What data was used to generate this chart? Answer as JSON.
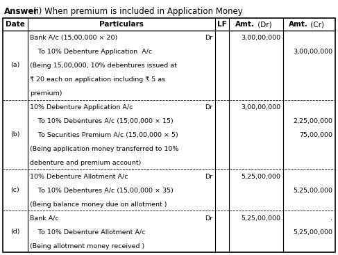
{
  "title_bold": "Answer",
  "title_normal": " (i) When premium is included in Application Money",
  "headers": [
    "Date",
    "Particulars",
    "LF",
    "Amt. (Dr)",
    "Amt. (Cr)"
  ],
  "rows": [
    {
      "date": "(a)",
      "lines": [
        {
          "text": "Bank A/c (15,00,000 × 20)",
          "dr_tag": true,
          "indent": false
        },
        {
          "text": "    To 10% Debenture Application  A/c",
          "dr_tag": false,
          "indent": true
        },
        {
          "text": "(Being 15,00,000, 10% debentures issued at",
          "dr_tag": false,
          "indent": false
        },
        {
          "text": "₹ 20 each on application including ₹ 5 as",
          "dr_tag": false,
          "indent": false
        },
        {
          "text": "premium)",
          "dr_tag": false,
          "indent": false
        }
      ],
      "dr_amounts": {
        "0": "3,00,00,000"
      },
      "cr_amounts": {
        "1": "3,00,00,000"
      }
    },
    {
      "date": "(b)",
      "lines": [
        {
          "text": "10% Debenture Application A/c",
          "dr_tag": true,
          "indent": false
        },
        {
          "text": "    To 10% Debentures A/c (15,00,000 × 15)",
          "dr_tag": false,
          "indent": true
        },
        {
          "text": "    To Securities Premium A/c (15,00,000 × 5)",
          "dr_tag": false,
          "indent": true
        },
        {
          "text": "(Being application money transferred to 10%",
          "dr_tag": false,
          "indent": false
        },
        {
          "text": "debenture and premium account)",
          "dr_tag": false,
          "indent": false
        }
      ],
      "dr_amounts": {
        "0": "3,00,00,000"
      },
      "cr_amounts": {
        "1": "2,25,00,000",
        "2": "75,00,000"
      }
    },
    {
      "date": "(c)",
      "lines": [
        {
          "text": "10% Debenture Allotment A/c",
          "dr_tag": true,
          "indent": false
        },
        {
          "text": "    To 10% Debentures A/c (15,00,000 × 35)",
          "dr_tag": false,
          "indent": true
        },
        {
          "text": "(Being balance money due on allotment )",
          "dr_tag": false,
          "indent": false
        }
      ],
      "dr_amounts": {
        "0": "5,25,00,000"
      },
      "cr_amounts": {
        "1": "5,25,00,000"
      }
    },
    {
      "date": "(d)",
      "lines": [
        {
          "text": "Bank A/c",
          "dr_tag": true,
          "indent": false
        },
        {
          "text": "    To 10% Debenture Allotment A/c",
          "dr_tag": false,
          "indent": true
        },
        {
          "text": "(Being allotment money received )",
          "dr_tag": false,
          "indent": false
        }
      ],
      "dr_amounts": {
        "0": "5,25,00,000"
      },
      "cr_amounts": {
        "0": ".",
        "1": "5,25,00,000"
      }
    }
  ],
  "bg_color": "#ffffff",
  "line_color": "#000000",
  "text_color": "#000000",
  "font_size": 6.8,
  "header_font_size": 7.5,
  "title_font_size": 8.5
}
